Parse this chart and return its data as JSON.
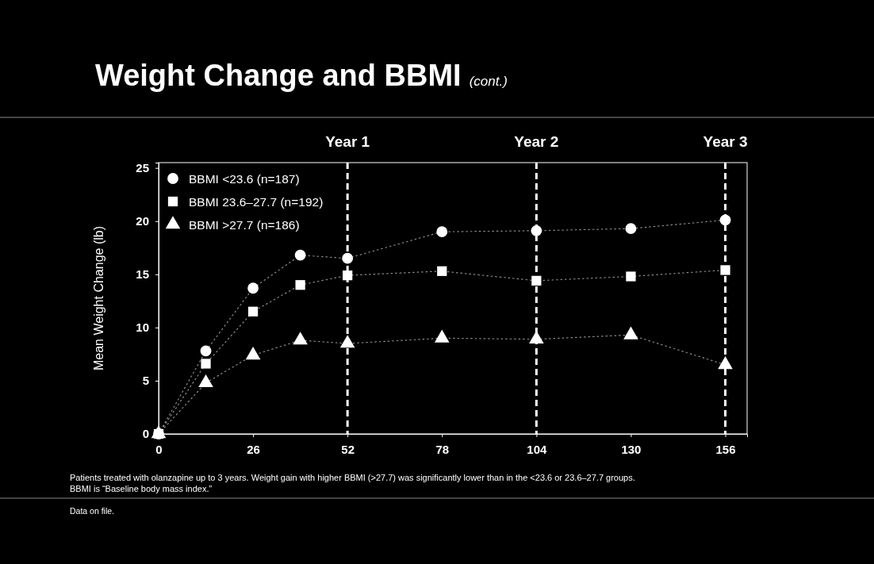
{
  "chart_data": {
    "type": "line",
    "title": "Weight Change and BBMI",
    "subtitle": "(cont.)",
    "ylabel": "Mean Weight Change (lb)",
    "x": [
      0,
      13,
      26,
      39,
      52,
      78,
      104,
      130,
      156
    ],
    "series": [
      {
        "name": "BBMI <23.6 (n=187)",
        "color": "#ffffff",
        "marker": "circle",
        "values": [
          0,
          7.8,
          13.7,
          16.8,
          16.5,
          19.0,
          19.1,
          19.3,
          20.1
        ]
      },
      {
        "name": "BBMI 23.6–27.7 (n=192)",
        "color": "#ffffff",
        "marker": "square",
        "values": [
          0,
          6.6,
          11.5,
          14.0,
          14.9,
          15.3,
          14.4,
          14.8,
          15.4
        ]
      },
      {
        "name": "BBMI >27.7 (n=186)",
        "color": "#ffffff",
        "marker": "triangle",
        "values": [
          0,
          4.8,
          7.4,
          8.8,
          8.5,
          9.0,
          8.9,
          9.3,
          6.5
        ]
      }
    ],
    "line_style": "dotted",
    "xlim": [
      0,
      162
    ],
    "xticks": [
      0,
      26,
      52,
      78,
      104,
      130,
      156
    ],
    "ylim": [
      0,
      25.5
    ],
    "yticks": [
      0,
      5,
      10,
      15,
      20,
      25
    ],
    "ref_lines": [
      {
        "axis": "x",
        "value": 52,
        "label": "Year 1",
        "color": "#ffffff",
        "line_style": "dashed"
      },
      {
        "axis": "x",
        "value": 104,
        "label": "Year 2",
        "color": "#ffffff",
        "line_style": "dashed"
      },
      {
        "axis": "x",
        "value": 156,
        "label": "Year 3",
        "color": "#ffffff",
        "line_style": "dashed"
      }
    ],
    "legend": "top left",
    "annotations": [
      "Patients treated with olanzapine up to 3 years. Weight gain with higher BBMI (>27.7) was significantly lower than in the <23.6 or 23.6–27.7 groups.",
      "BBMI is “Baseline body mass index.”",
      "Data on file."
    ]
  }
}
